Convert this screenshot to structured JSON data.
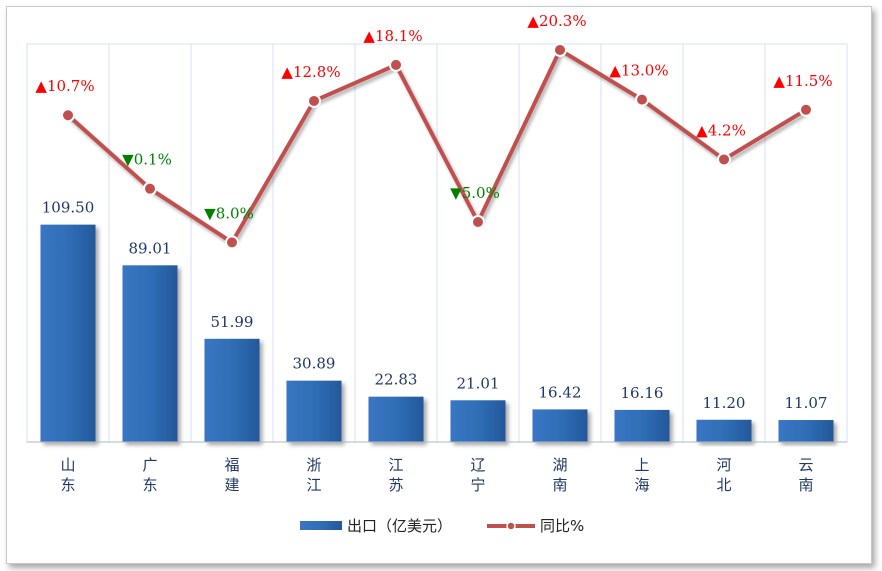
{
  "chart_data": {
    "type": "bar",
    "categories": [
      [
        "山",
        "东"
      ],
      [
        "广",
        "东"
      ],
      [
        "福",
        "建"
      ],
      [
        "浙",
        "江"
      ],
      [
        "江",
        "苏"
      ],
      [
        "辽",
        "宁"
      ],
      [
        "湖",
        "南"
      ],
      [
        "上",
        "海"
      ],
      [
        "河",
        "北"
      ],
      [
        "云",
        "南"
      ]
    ],
    "series": [
      {
        "name": "出口（亿美元）",
        "type": "bar",
        "values": [
          109.5,
          89.01,
          51.99,
          30.89,
          22.83,
          21.01,
          16.42,
          16.16,
          11.2,
          11.07
        ],
        "labels": [
          "109.50",
          "89.01",
          "51.99",
          "30.89",
          "22.83",
          "21.01",
          "16.42",
          "16.16",
          "11.20",
          "11.07"
        ],
        "color": "#2e6db4"
      },
      {
        "name": "同比%",
        "type": "line",
        "values": [
          10.7,
          -0.1,
          -8.0,
          12.8,
          18.1,
          -5.0,
          20.3,
          13.0,
          4.2,
          11.5
        ],
        "labels": [
          "▲10.7%",
          "▼0.1%",
          "▼8.0%",
          "▲12.8%",
          "▲18.1%",
          "▼5.0%",
          "▲20.3%",
          "▲13.0%",
          "▲4.2%",
          "▲11.5%"
        ],
        "color": "#c0504d"
      }
    ],
    "colors": {
      "up": "#ff0000",
      "down": "#008000"
    },
    "legend": "bottom",
    "grid": "vertical"
  }
}
